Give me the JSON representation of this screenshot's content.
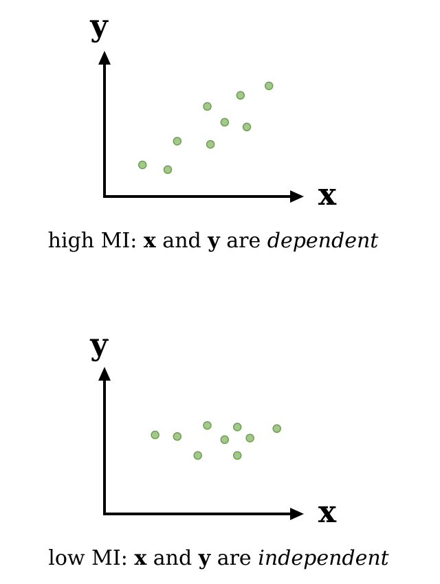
{
  "colors": {
    "point_fill": "#a3c98a",
    "point_stroke": "#6f9d55",
    "axis": "#000000"
  },
  "panels": [
    {
      "id": "high",
      "x_axis_label": "x",
      "y_axis_label": "y",
      "caption": {
        "prefix": "high MI: ",
        "var1": "x",
        "middle": " and ",
        "var2": "y",
        "suffix": " are ",
        "emphasis": "dependent"
      },
      "points": [
        {
          "x": 1.2,
          "y": 1.0
        },
        {
          "x": 2.0,
          "y": 0.85
        },
        {
          "x": 2.3,
          "y": 1.75
        },
        {
          "x": 3.35,
          "y": 1.65
        },
        {
          "x": 3.25,
          "y": 2.85
        },
        {
          "x": 3.8,
          "y": 2.35
        },
        {
          "x": 4.3,
          "y": 3.2
        },
        {
          "x": 4.5,
          "y": 2.2
        },
        {
          "x": 5.2,
          "y": 3.5
        }
      ]
    },
    {
      "id": "low",
      "x_axis_label": "x",
      "y_axis_label": "y",
      "caption": {
        "prefix": "low MI: ",
        "var1": "x",
        "middle": " and ",
        "var2": "y",
        "suffix": " are ",
        "emphasis": "independent"
      },
      "points": [
        {
          "x": 1.6,
          "y": 2.5
        },
        {
          "x": 2.3,
          "y": 2.45
        },
        {
          "x": 2.95,
          "y": 1.85
        },
        {
          "x": 3.25,
          "y": 2.8
        },
        {
          "x": 3.8,
          "y": 2.35
        },
        {
          "x": 4.2,
          "y": 2.75
        },
        {
          "x": 4.2,
          "y": 1.85
        },
        {
          "x": 4.6,
          "y": 2.4
        },
        {
          "x": 5.45,
          "y": 2.7
        }
      ]
    }
  ]
}
